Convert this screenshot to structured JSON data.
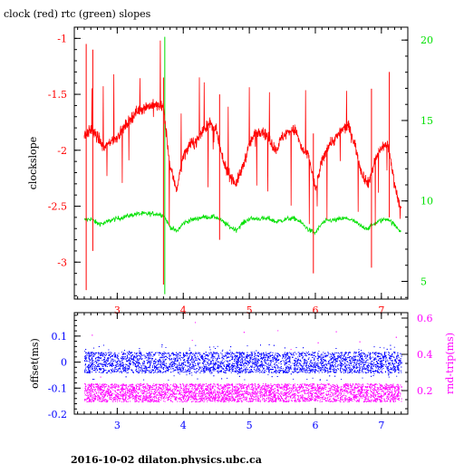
{
  "title": "clock (red) rtc (green) slopes",
  "footer": "2016-10-02  dilaton.physics.ubc.ca",
  "colors": {
    "clock": "#ff0000",
    "rtc": "#00e000",
    "offset": "#0000ff",
    "rndtrip": "#ff00ff",
    "axis": "#000000"
  },
  "chart_data": [
    {
      "type": "line",
      "title": "clock (red) rtc (green) slopes",
      "ylabel": "clockslope",
      "y2label": "",
      "xlim": [
        2.35,
        7.4
      ],
      "ylim": [
        -3.33,
        -0.9
      ],
      "y2lim": [
        3.9,
        20.8
      ],
      "xticks": [
        "3",
        "4",
        "5",
        "6",
        "7"
      ],
      "yticks": [
        "-1",
        "-1.5",
        "-2",
        "-2.5",
        "-3"
      ],
      "y2ticks": [
        "5",
        "10",
        "15",
        "20"
      ],
      "series": [
        {
          "name": "clock",
          "axis": "left",
          "x": [
            2.5,
            2.6,
            2.7,
            2.8,
            2.9,
            3.0,
            3.1,
            3.2,
            3.3,
            3.4,
            3.5,
            3.6,
            3.7,
            3.8,
            3.9,
            4.0,
            4.1,
            4.2,
            4.3,
            4.4,
            4.5,
            4.6,
            4.7,
            4.8,
            4.9,
            5.0,
            5.1,
            5.2,
            5.3,
            5.4,
            5.5,
            5.6,
            5.7,
            5.8,
            5.9,
            6.0,
            6.1,
            6.2,
            6.3,
            6.4,
            6.5,
            6.6,
            6.7,
            6.8,
            6.9,
            7.0,
            7.1,
            7.2,
            7.3
          ],
          "y": [
            -1.87,
            -1.82,
            -1.88,
            -1.98,
            -1.92,
            -1.88,
            -1.8,
            -1.72,
            -1.65,
            -1.62,
            -1.6,
            -1.6,
            -1.62,
            -2.15,
            -2.35,
            -2.05,
            -1.95,
            -1.92,
            -1.82,
            -1.76,
            -1.83,
            -2.1,
            -2.22,
            -2.3,
            -2.15,
            -1.95,
            -1.84,
            -1.82,
            -1.9,
            -2.0,
            -1.88,
            -1.83,
            -1.82,
            -2.0,
            -2.05,
            -2.35,
            -2.1,
            -1.95,
            -1.9,
            -1.82,
            -1.78,
            -1.95,
            -2.2,
            -2.3,
            -2.1,
            -1.97,
            -1.95,
            -2.3,
            -2.55
          ]
        },
        {
          "name": "rtc",
          "axis": "right",
          "x": [
            2.5,
            2.6,
            2.7,
            2.8,
            2.9,
            3.0,
            3.1,
            3.2,
            3.3,
            3.4,
            3.5,
            3.6,
            3.7,
            3.8,
            3.9,
            4.0,
            4.1,
            4.2,
            4.3,
            4.4,
            4.5,
            4.6,
            4.7,
            4.8,
            4.9,
            5.0,
            5.1,
            5.2,
            5.3,
            5.4,
            5.5,
            5.6,
            5.7,
            5.8,
            5.9,
            6.0,
            6.1,
            6.2,
            6.3,
            6.4,
            6.5,
            6.6,
            6.7,
            6.8,
            6.9,
            7.0,
            7.1,
            7.2,
            7.3
          ],
          "y": [
            8.8,
            8.9,
            8.6,
            8.6,
            8.8,
            8.9,
            9.0,
            9.1,
            9.2,
            9.2,
            9.2,
            9.2,
            9.1,
            8.4,
            8.1,
            8.6,
            8.8,
            8.9,
            9.0,
            9.0,
            9.0,
            8.7,
            8.4,
            8.2,
            8.6,
            8.9,
            8.9,
            8.9,
            8.9,
            8.7,
            8.8,
            8.9,
            8.9,
            8.6,
            8.2,
            8.0,
            8.6,
            8.8,
            8.8,
            8.9,
            8.9,
            8.7,
            8.4,
            8.3,
            8.6,
            8.8,
            8.9,
            8.5,
            8.1
          ]
        }
      ]
    },
    {
      "type": "scatter",
      "ylabel": "offset(ms)",
      "y2label": "rnd-trip(ms)",
      "xlim": [
        2.35,
        7.4
      ],
      "ylim": [
        -0.2,
        0.19
      ],
      "y2lim": [
        0.07,
        0.63
      ],
      "xticks": [
        "3",
        "4",
        "5",
        "6",
        "7"
      ],
      "yticks": [
        "0.1",
        "0",
        "-0.1",
        "-0.2"
      ],
      "y2ticks": [
        "0.6",
        "0.4",
        "0.2"
      ],
      "series": [
        {
          "name": "offset",
          "axis": "left",
          "x_range": [
            2.5,
            7.3
          ],
          "y_center": 0.0,
          "y_spread": 0.04
        },
        {
          "name": "rnd-trip",
          "axis": "right",
          "x_range": [
            2.5,
            7.3
          ],
          "y_center": 0.19,
          "y_spread": 0.05
        }
      ]
    }
  ]
}
